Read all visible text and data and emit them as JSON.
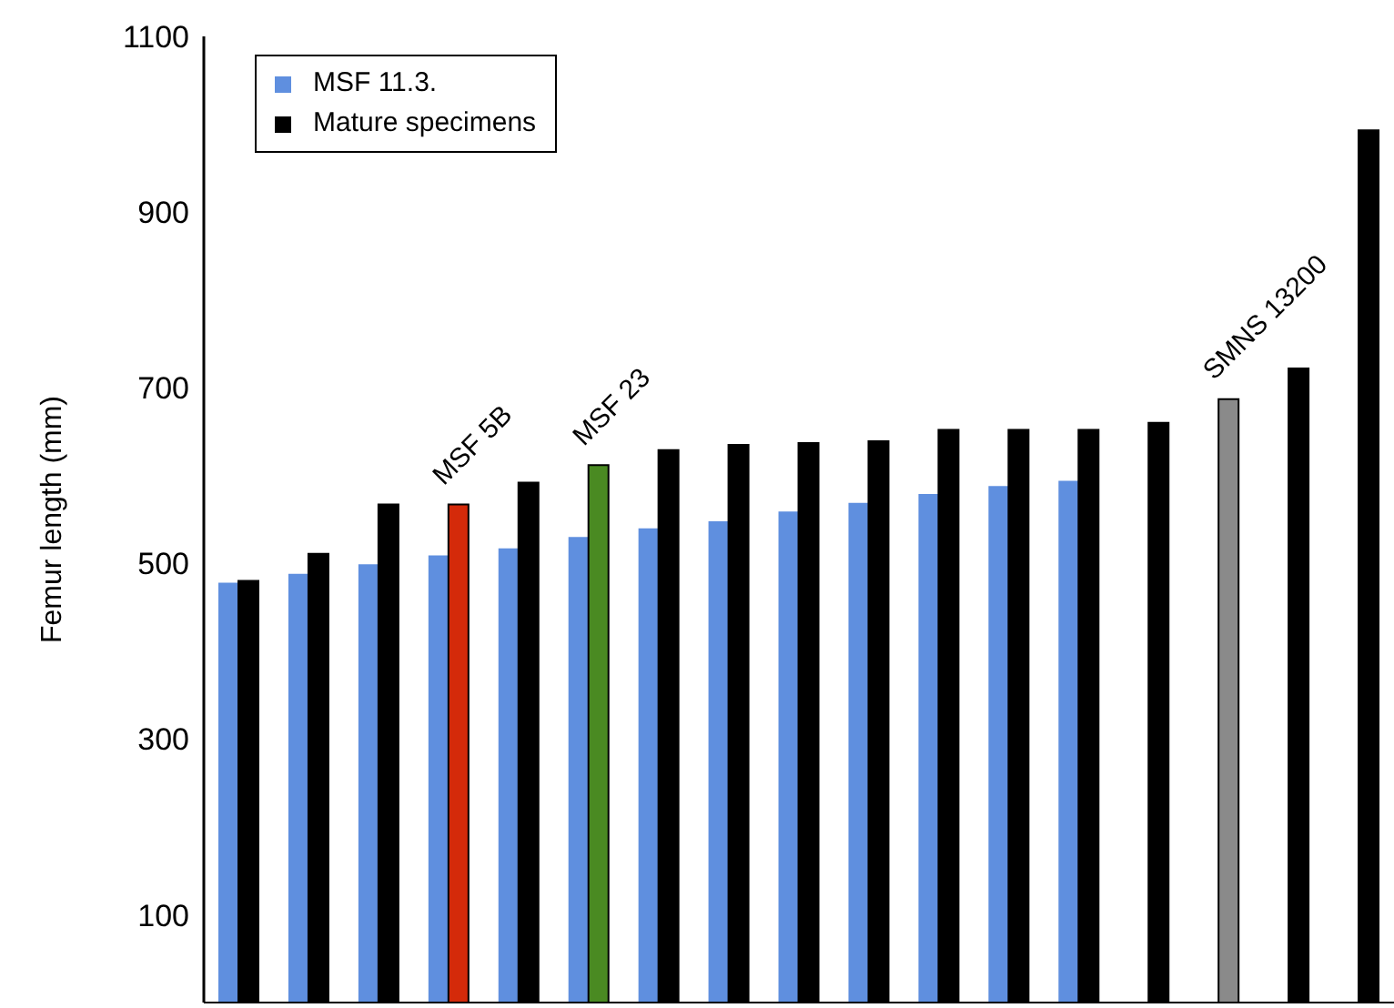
{
  "chart_data": {
    "type": "bar",
    "ylabel": "Femur length (mm)",
    "categories": [
      null,
      null,
      null,
      null,
      null,
      null,
      null,
      null,
      null,
      null,
      null,
      null,
      null,
      null,
      null,
      null,
      null
    ],
    "series": [
      {
        "name": "MSF 11.3.",
        "color": "#5f8fdf",
        "values": [
          478,
          488,
          499,
          509,
          517,
          530,
          540,
          548,
          559,
          569,
          579,
          588,
          594,
          null,
          null,
          null,
          null
        ]
      },
      {
        "name": "Mature specimens",
        "color": "#000000",
        "colors": [
          "#000000",
          "#000000",
          "#000000",
          "#d42a0a",
          "#000000",
          "#4a8a22",
          "#000000",
          "#000000",
          "#000000",
          "#000000",
          "#000000",
          "#000000",
          "#000000",
          "#000000",
          "#8a8a8a",
          "#000000",
          "#000000"
        ],
        "values": [
          480,
          511,
          567,
          567,
          592,
          612,
          629,
          635,
          637,
          639,
          652,
          652,
          652,
          660,
          687,
          722,
          993
        ]
      }
    ],
    "annotations": [
      "MSF 5B",
      "MSF 23",
      "SMNS 13200"
    ],
    "ylim": [
      0,
      1100
    ],
    "yticks": [
      100,
      300,
      500,
      700,
      900,
      1100
    ],
    "tick_labels": "y",
    "legend": "top left",
    "grid": false
  }
}
